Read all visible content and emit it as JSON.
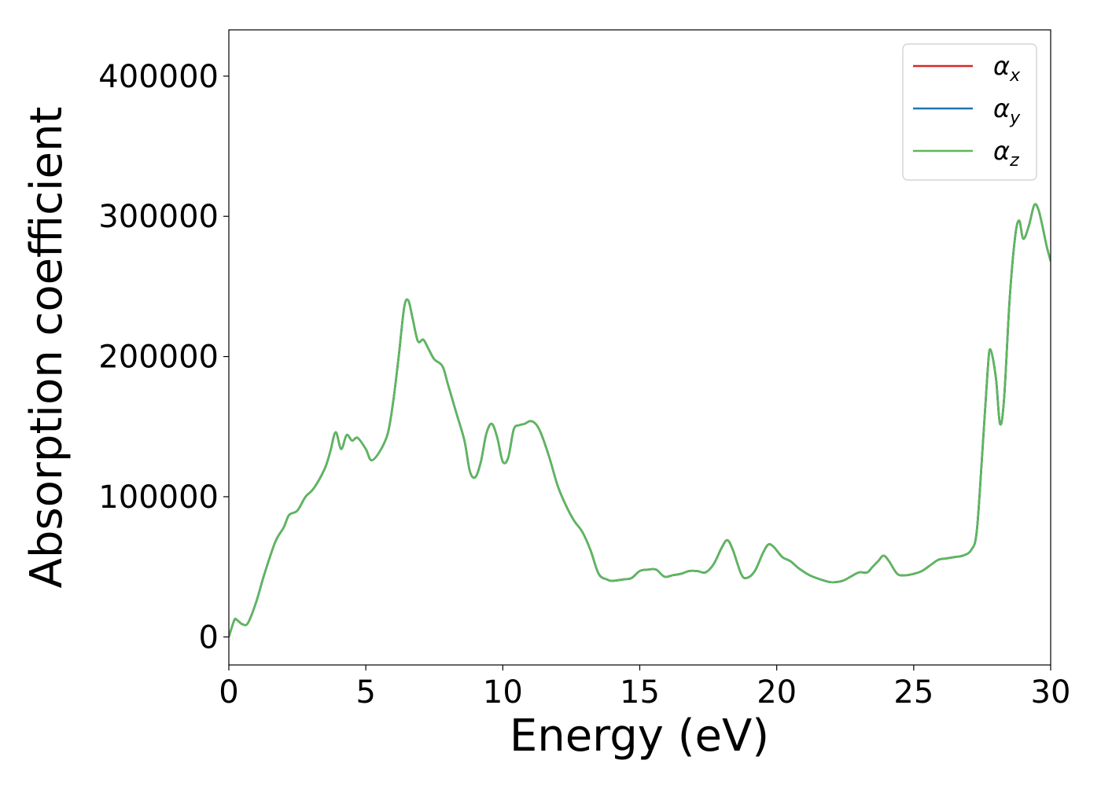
{
  "chart_data": {
    "type": "line",
    "title": "",
    "xlabel": "Energy (eV)",
    "ylabel": "Absorption coefficient",
    "xlim": [
      0,
      30
    ],
    "ylim": [
      -20000,
      433000
    ],
    "xticks": [
      0,
      5,
      10,
      15,
      20,
      25,
      30
    ],
    "yticks": [
      0,
      100000,
      200000,
      300000,
      400000
    ],
    "grid": false,
    "legend_placement": "top-right",
    "series_common_x": [
      0,
      0.2,
      0.3,
      0.5,
      0.7,
      1.0,
      1.3,
      1.7,
      2.0,
      2.2,
      2.5,
      2.8,
      3.1,
      3.5,
      3.7,
      3.9,
      4.1,
      4.3,
      4.5,
      4.7,
      5.0,
      5.2,
      5.5,
      5.8,
      6.0,
      6.2,
      6.4,
      6.55,
      6.7,
      6.9,
      7.1,
      7.3,
      7.5,
      7.8,
      8.0,
      8.3,
      8.6,
      8.8,
      9.0,
      9.2,
      9.4,
      9.6,
      9.8,
      10.0,
      10.2,
      10.4,
      10.6,
      10.8,
      11.0,
      11.2,
      11.4,
      11.7,
      12.0,
      12.3,
      12.6,
      12.9,
      13.2,
      13.5,
      13.8,
      14.0,
      14.4,
      14.7,
      15.0,
      15.3,
      15.6,
      15.9,
      16.2,
      16.5,
      16.8,
      17.1,
      17.4,
      17.7,
      18.0,
      18.2,
      18.4,
      18.7,
      18.9,
      19.2,
      19.5,
      19.7,
      19.9,
      20.2,
      20.5,
      20.8,
      21.2,
      21.6,
      22.0,
      22.4,
      22.7,
      23.0,
      23.3,
      23.5,
      23.7,
      23.9,
      24.1,
      24.4,
      24.7,
      25.0,
      25.3,
      25.6,
      25.9,
      26.2,
      26.5,
      26.8,
      27.1,
      27.3,
      27.5,
      27.7,
      27.8,
      28.0,
      28.15,
      28.3,
      28.5,
      28.7,
      28.85,
      29.0,
      29.2,
      29.4,
      29.55,
      29.7,
      29.85,
      30.0
    ],
    "series": [
      {
        "name": "α_x",
        "color": "#d62728",
        "values": [
          0,
          12000,
          12000,
          9000,
          10000,
          25000,
          45000,
          68000,
          78000,
          87000,
          90000,
          100000,
          106000,
          120000,
          132000,
          146000,
          134000,
          144000,
          140000,
          142000,
          134000,
          126000,
          132000,
          145000,
          168000,
          200000,
          235000,
          240000,
          228000,
          211000,
          212000,
          205000,
          198000,
          193000,
          180000,
          160000,
          140000,
          118000,
          114000,
          125000,
          145000,
          152000,
          142000,
          125000,
          128000,
          148000,
          151000,
          152000,
          154000,
          152000,
          145000,
          128000,
          108000,
          94000,
          83000,
          75000,
          62000,
          45000,
          41000,
          40000,
          41000,
          42000,
          47000,
          48000,
          48000,
          43000,
          44000,
          45000,
          47000,
          47000,
          46000,
          52000,
          64000,
          69000,
          62000,
          45000,
          42000,
          47000,
          60000,
          66000,
          64000,
          57000,
          54000,
          49000,
          44000,
          41000,
          39000,
          40000,
          43000,
          46000,
          46000,
          50000,
          54000,
          58000,
          54000,
          45000,
          44000,
          45000,
          47000,
          51000,
          55000,
          56000,
          57000,
          58000,
          62000,
          75000,
          130000,
          190000,
          205000,
          185000,
          152000,
          170000,
          240000,
          285000,
          297000,
          284000,
          293000,
          308000,
          305000,
          293000,
          279000,
          268000
        ]
      },
      {
        "name": "α_y",
        "color": "#1f77b4",
        "values": [
          0,
          12000,
          12000,
          9000,
          10000,
          25000,
          45000,
          68000,
          78000,
          87000,
          90000,
          100000,
          106000,
          120000,
          132000,
          146000,
          134000,
          144000,
          140000,
          142000,
          134000,
          126000,
          132000,
          145000,
          168000,
          200000,
          235000,
          240000,
          228000,
          211000,
          212000,
          205000,
          198000,
          193000,
          180000,
          160000,
          140000,
          118000,
          114000,
          125000,
          145000,
          152000,
          142000,
          125000,
          128000,
          148000,
          151000,
          152000,
          154000,
          152000,
          145000,
          128000,
          108000,
          94000,
          83000,
          75000,
          62000,
          45000,
          41000,
          40000,
          41000,
          42000,
          47000,
          48000,
          48000,
          43000,
          44000,
          45000,
          47000,
          47000,
          46000,
          52000,
          64000,
          69000,
          62000,
          45000,
          42000,
          47000,
          60000,
          66000,
          64000,
          57000,
          54000,
          49000,
          44000,
          41000,
          39000,
          40000,
          43000,
          46000,
          46000,
          50000,
          54000,
          58000,
          54000,
          45000,
          44000,
          45000,
          47000,
          51000,
          55000,
          56000,
          57000,
          58000,
          62000,
          75000,
          130000,
          190000,
          205000,
          185000,
          152000,
          170000,
          240000,
          285000,
          297000,
          284000,
          293000,
          308000,
          305000,
          293000,
          279000,
          268000
        ]
      },
      {
        "name": "α_z",
        "color": "#5cb85c",
        "values": [
          0,
          12000,
          12000,
          9000,
          10000,
          25000,
          45000,
          68000,
          78000,
          87000,
          90000,
          100000,
          106000,
          120000,
          132000,
          146000,
          134000,
          144000,
          140000,
          142000,
          134000,
          126000,
          132000,
          145000,
          168000,
          200000,
          235000,
          240000,
          228000,
          211000,
          212000,
          205000,
          198000,
          193000,
          180000,
          160000,
          140000,
          118000,
          114000,
          125000,
          145000,
          152000,
          142000,
          125000,
          128000,
          148000,
          151000,
          152000,
          154000,
          152000,
          145000,
          128000,
          108000,
          94000,
          83000,
          75000,
          62000,
          45000,
          41000,
          40000,
          41000,
          42000,
          47000,
          48000,
          48000,
          43000,
          44000,
          45000,
          47000,
          47000,
          46000,
          52000,
          64000,
          69000,
          62000,
          45000,
          42000,
          47000,
          60000,
          66000,
          64000,
          57000,
          54000,
          49000,
          44000,
          41000,
          39000,
          40000,
          43000,
          46000,
          46000,
          50000,
          54000,
          58000,
          54000,
          45000,
          44000,
          45000,
          47000,
          51000,
          55000,
          56000,
          57000,
          58000,
          62000,
          75000,
          130000,
          190000,
          205000,
          185000,
          152000,
          170000,
          240000,
          285000,
          297000,
          284000,
          293000,
          308000,
          305000,
          293000,
          279000,
          268000
        ]
      }
    ],
    "legend_labels": [
      {
        "base": "α",
        "sub": "x"
      },
      {
        "base": "α",
        "sub": "y"
      },
      {
        "base": "α",
        "sub": "z"
      }
    ],
    "tick_labels_x": [
      "0",
      "5",
      "10",
      "15",
      "20",
      "25",
      "30"
    ],
    "tick_labels_y": [
      "0",
      "100000",
      "200000",
      "300000",
      "400000"
    ]
  }
}
